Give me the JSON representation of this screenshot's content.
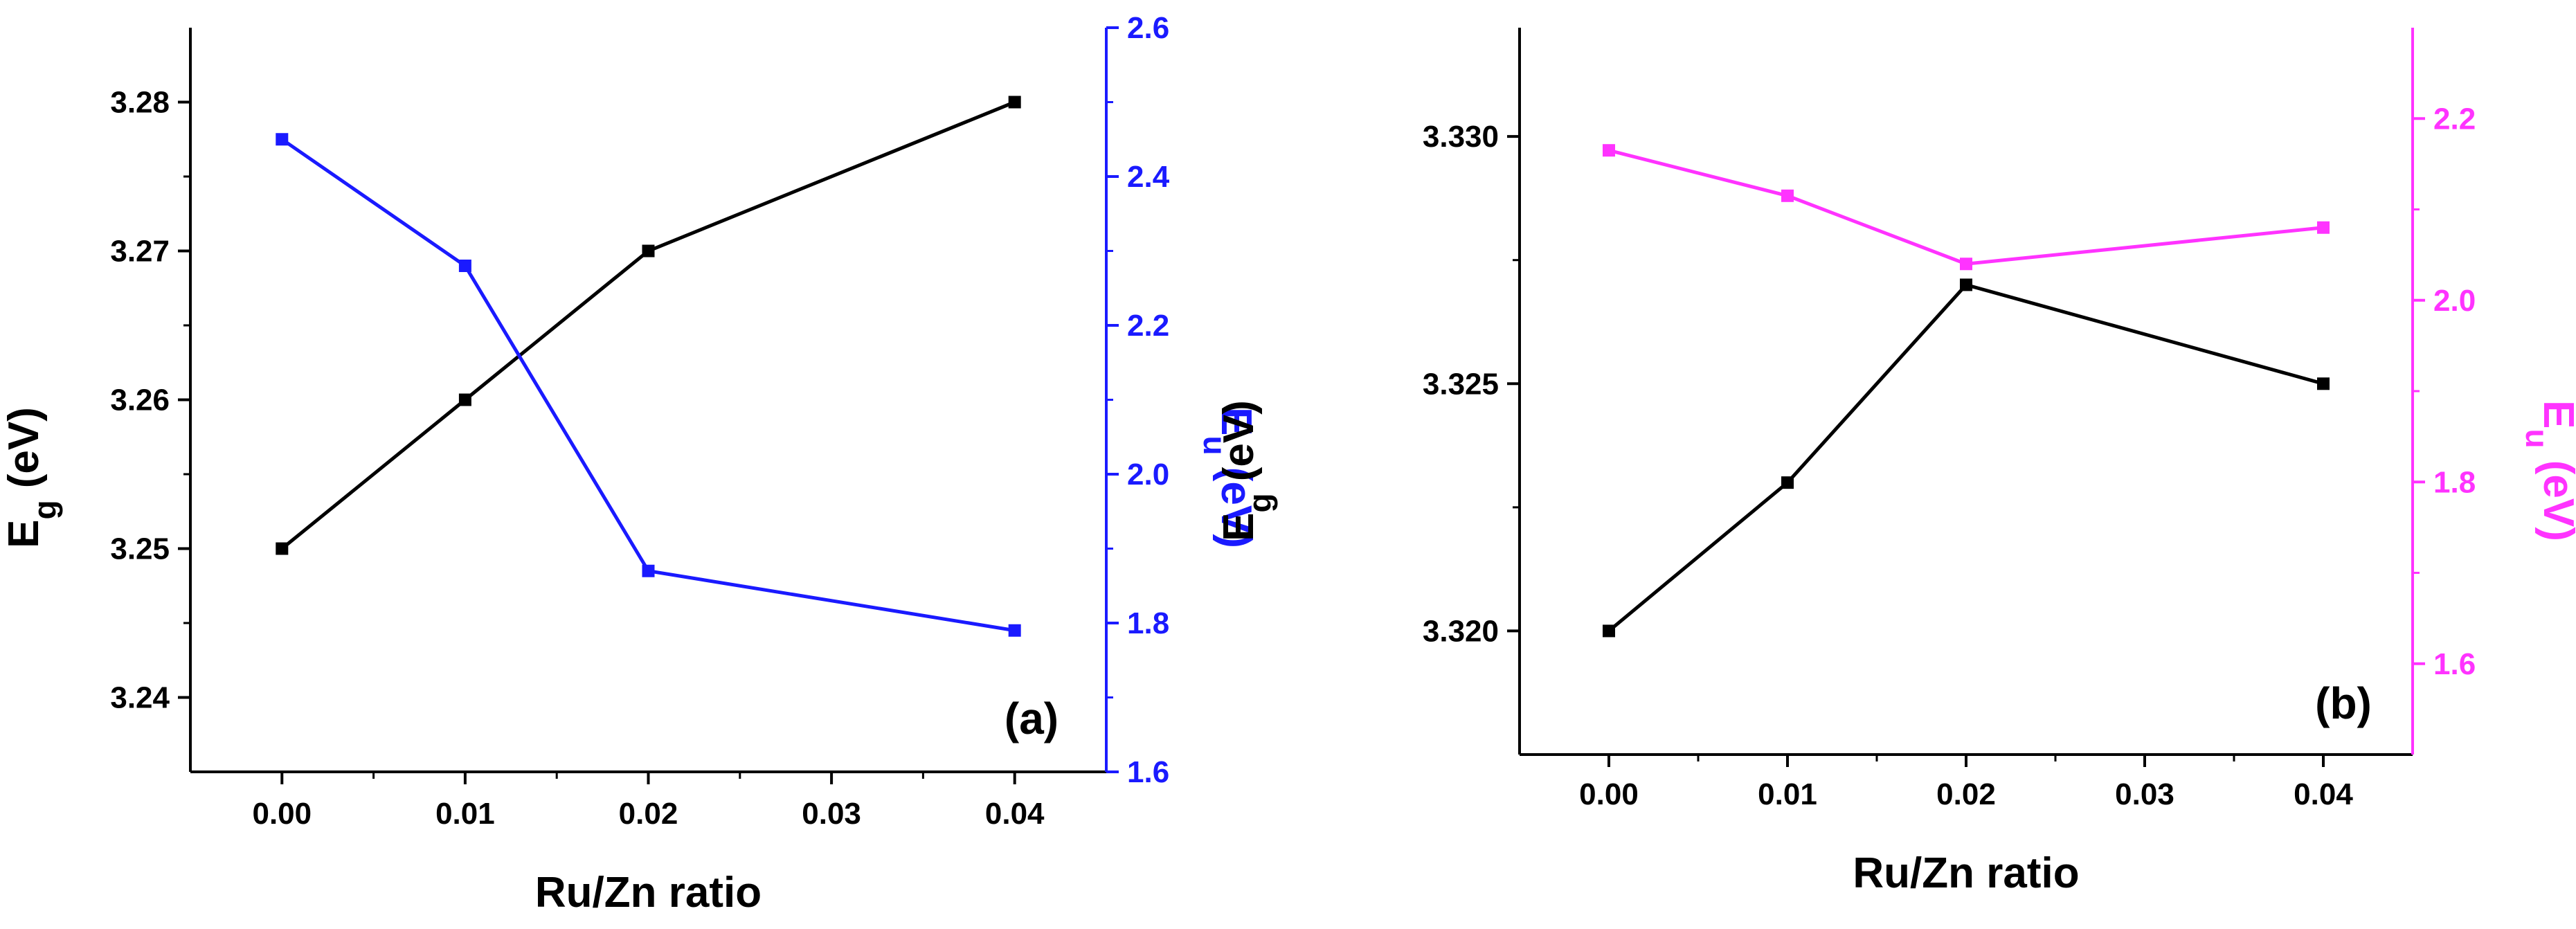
{
  "chart_data": [
    {
      "type": "line",
      "panel_label": "(a)",
      "xlabel": "Ru/Zn ratio",
      "xlim": [
        -0.005,
        0.045
      ],
      "xticks": [
        0.0,
        0.01,
        0.02,
        0.03,
        0.04
      ],
      "xtick_labels": [
        "0.00",
        "0.01",
        "0.02",
        "0.03",
        "0.04"
      ],
      "x": [
        0.0,
        0.01,
        0.02,
        0.04
      ],
      "left_axis": {
        "label_main": "E",
        "label_sub": "g",
        "label_unit": " (eV)",
        "ylim": [
          3.235,
          3.285
        ],
        "ticks": [
          3.24,
          3.25,
          3.26,
          3.27,
          3.28
        ],
        "tick_labels": [
          "3.24",
          "3.25",
          "3.26",
          "3.27",
          "3.28"
        ],
        "color": "#000000"
      },
      "right_axis": {
        "label_main": "E",
        "label_sub": "u",
        "label_unit": " (eV)",
        "ylim": [
          1.6,
          2.6
        ],
        "ticks": [
          1.6,
          1.8,
          2.0,
          2.2,
          2.4,
          2.6
        ],
        "tick_labels": [
          "1.6",
          "1.8",
          "2.0",
          "2.2",
          "2.4",
          "2.6"
        ],
        "color": "#1a1aff"
      },
      "series": [
        {
          "name": "Eg",
          "axis": "left",
          "color": "#000000",
          "values": [
            3.25,
            3.26,
            3.27,
            3.28
          ]
        },
        {
          "name": "Eu",
          "axis": "right",
          "color": "#1a1aff",
          "values": [
            2.45,
            2.28,
            1.87,
            1.79
          ]
        }
      ]
    },
    {
      "type": "line",
      "panel_label": "(b)",
      "xlabel": "Ru/Zn ratio",
      "xlim": [
        -0.005,
        0.045
      ],
      "xticks": [
        0.0,
        0.01,
        0.02,
        0.03,
        0.04
      ],
      "xtick_labels": [
        "0.00",
        "0.01",
        "0.02",
        "0.03",
        "0.04"
      ],
      "x": [
        0.0,
        0.01,
        0.02,
        0.04
      ],
      "left_axis": {
        "label_main": "E",
        "label_sub": "g",
        "label_unit": " (eV)",
        "ylim": [
          3.3175,
          3.3322
        ],
        "ticks": [
          3.32,
          3.325,
          3.33
        ],
        "tick_labels": [
          "3.320",
          "3.325",
          "3.330"
        ],
        "color": "#000000"
      },
      "right_axis": {
        "label_main": "E",
        "label_sub": "u",
        "label_unit": " (eV)",
        "ylim": [
          1.5,
          2.3
        ],
        "ticks": [
          1.6,
          1.8,
          2.0,
          2.2
        ],
        "tick_labels": [
          "1.6",
          "1.8",
          "2.0",
          "2.2"
        ],
        "color": "#ff33ff"
      },
      "series": [
        {
          "name": "Eg",
          "axis": "left",
          "color": "#000000",
          "values": [
            3.32,
            3.323,
            3.327,
            3.325
          ]
        },
        {
          "name": "Eu",
          "axis": "right",
          "color": "#ff33ff",
          "values": [
            2.165,
            2.115,
            2.04,
            2.08
          ]
        }
      ]
    }
  ]
}
